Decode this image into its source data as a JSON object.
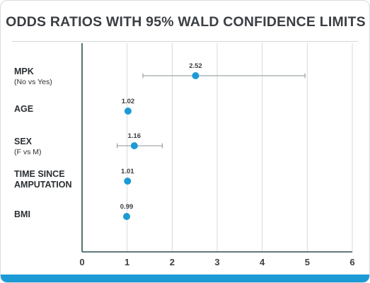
{
  "chart_data": {
    "type": "scatter",
    "title": "ODDS RATIOS WITH 95% WALD CONFIDENCE LIMITS",
    "xlim": [
      0,
      6
    ],
    "xticks": [
      "0",
      "1",
      "2",
      "3",
      "4",
      "5",
      "6"
    ],
    "grid": true,
    "point_color": "#1c9ad6",
    "whisker_color": "#8a9096",
    "categories": [
      {
        "name": "MPK",
        "sub": "(No vs Yes)",
        "estimate": 2.52,
        "label": "2.52",
        "lower": 1.35,
        "upper": 4.95
      },
      {
        "name": "AGE",
        "sub": "",
        "estimate": 1.02,
        "label": "1.02",
        "lower": null,
        "upper": null
      },
      {
        "name": "SEX",
        "sub": "(F vs M)",
        "estimate": 1.16,
        "label": "1.16",
        "lower": 0.78,
        "upper": 1.78
      },
      {
        "name": "TIME SINCE AMPUTATION",
        "line1": "TIME SINCE",
        "line2": "AMPUTATION",
        "sub": "",
        "estimate": 1.01,
        "label": "1.01",
        "lower": null,
        "upper": null
      },
      {
        "name": "BMI",
        "sub": "",
        "estimate": 0.99,
        "label": "0.99",
        "lower": null,
        "upper": null
      }
    ]
  },
  "accent_color": "#1c9ad6"
}
